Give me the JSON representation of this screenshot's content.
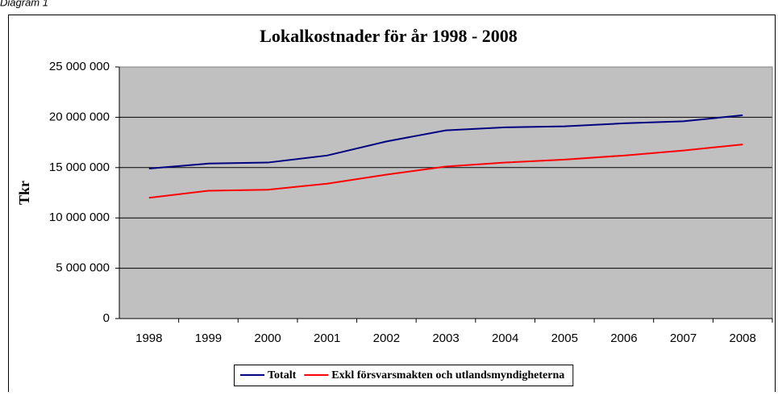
{
  "caption": "Diagram 1",
  "chart_data": {
    "type": "line",
    "title": "Lokalkostnader för år 1998 - 2008",
    "y_label": "Tkr",
    "categories": [
      "1998",
      "1999",
      "2000",
      "2001",
      "2002",
      "2003",
      "2004",
      "2005",
      "2006",
      "2007",
      "2008"
    ],
    "series": [
      {
        "name": "Totalt",
        "color": "#000080",
        "values": [
          14900000,
          15400000,
          15500000,
          16200000,
          17600000,
          18700000,
          19000000,
          19100000,
          19400000,
          19600000,
          20200000
        ]
      },
      {
        "name": "Exkl försvarsmakten och utlandsmyndigheterna",
        "color": "#ff0000",
        "values": [
          12000000,
          12700000,
          12800000,
          13400000,
          14300000,
          15100000,
          15500000,
          15800000,
          16200000,
          16700000,
          17300000
        ]
      }
    ],
    "ylim": [
      0,
      25000000
    ],
    "yticks": [
      0,
      {
        "value": 5000000,
        "label": "5 000 000"
      },
      {
        "value": 10000000,
        "label": "10 000 000"
      },
      {
        "value": 15000000,
        "label": "15 000 000"
      },
      {
        "value": 20000000,
        "label": "20 000 000"
      },
      {
        "value": 25000000,
        "label": "25 000 000"
      }
    ],
    "grid": true,
    "legend": "bottom",
    "plot_background": "#c0c0c0"
  }
}
